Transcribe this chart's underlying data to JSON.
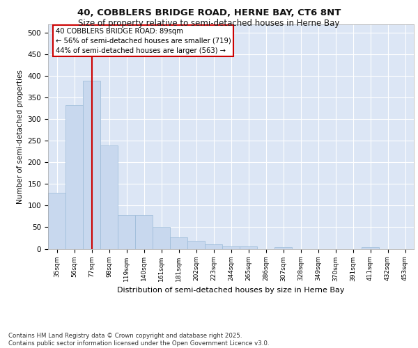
{
  "title_line1": "40, COBBLERS BRIDGE ROAD, HERNE BAY, CT6 8NT",
  "title_line2": "Size of property relative to semi-detached houses in Herne Bay",
  "xlabel": "Distribution of semi-detached houses by size in Herne Bay",
  "ylabel": "Number of semi-detached properties",
  "bar_color": "#c8d8ee",
  "bar_edge_color": "#9bbbd8",
  "categories": [
    "35sqm",
    "56sqm",
    "77sqm",
    "98sqm",
    "119sqm",
    "140sqm",
    "161sqm",
    "181sqm",
    "202sqm",
    "223sqm",
    "244sqm",
    "265sqm",
    "286sqm",
    "307sqm",
    "328sqm",
    "349sqm",
    "370sqm",
    "391sqm",
    "411sqm",
    "432sqm",
    "453sqm"
  ],
  "values": [
    130,
    333,
    390,
    240,
    78,
    78,
    51,
    26,
    18,
    10,
    5,
    5,
    0,
    4,
    0,
    0,
    0,
    0,
    4,
    0,
    0
  ],
  "ylim": [
    0,
    520
  ],
  "yticks": [
    0,
    50,
    100,
    150,
    200,
    250,
    300,
    350,
    400,
    450,
    500
  ],
  "vline_x": 2.5,
  "annotation_text": "40 COBBLERS BRIDGE ROAD: 89sqm\n← 56% of semi-detached houses are smaller (719)\n44% of semi-detached houses are larger (563) →",
  "annotation_box_color": "#ffffff",
  "annotation_box_edge_color": "#cc0000",
  "footer_text": "Contains HM Land Registry data © Crown copyright and database right 2025.\nContains public sector information licensed under the Open Government Licence v3.0.",
  "background_color": "#dce6f5",
  "plot_bg_color": "#dce6f5",
  "fig_bg_color": "#ffffff",
  "grid_color": "#ffffff",
  "vline_color": "#cc0000"
}
